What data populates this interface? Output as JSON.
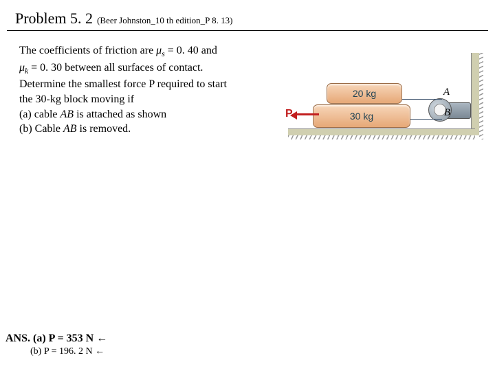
{
  "header": {
    "title_main": "Problem 5. 2",
    "title_sub": "(Beer Johnston_10 th edition_P 8. 13)"
  },
  "problem": {
    "line1_prefix": "The coefficients of friction are ",
    "mu_s_sym": "μ",
    "mu_s_sub": "s",
    "mu_s_val": " = 0. 40 and",
    "mu_k_sym": "μ",
    "mu_k_sub": "k",
    "line2_rest": " = 0. 30 between all surfaces of contact.",
    "line3": "Determine the smallest force P required to start",
    "line4": "the 30-kg block moving if",
    "part_a_prefix": "(a) cable ",
    "part_a_ital": "AB",
    "part_a_suffix": " is attached as shown",
    "part_b_prefix": "(b) Cable ",
    "part_b_ital": "AB",
    "part_b_suffix": " is removed."
  },
  "figure": {
    "block_top_label": "20 kg",
    "block_bottom_label": "30 kg",
    "label_A": "A",
    "label_B": "B",
    "force_label": "P",
    "colors": {
      "block_fill_top": "#f7d6b9",
      "block_fill_bottom": "#e6a877",
      "block_border": "#9a6b45",
      "force_color": "#c21f1f",
      "cable_color": "#3a506a",
      "floor_fill": "#d0cfb0",
      "pulley_light": "#cfd7de",
      "pulley_dark": "#8a97a2"
    }
  },
  "answers": {
    "label": "ANS.",
    "a": "(a) P  = 353 N ←",
    "b": "(b) P  = 196. 2 N ←"
  }
}
